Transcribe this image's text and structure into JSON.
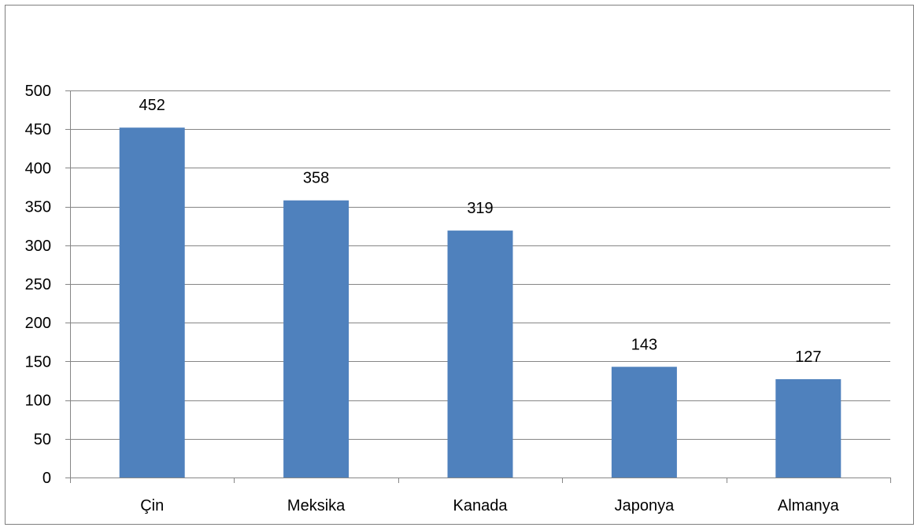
{
  "chart_data": {
    "type": "bar",
    "title": "",
    "xlabel": "",
    "ylabel": "",
    "categories": [
      "Çin",
      "Meksika",
      "Kanada",
      "Japonya",
      "Almanya"
    ],
    "values": [
      452,
      358,
      319,
      143,
      127
    ],
    "data_labels": [
      "452",
      "358",
      "319",
      "143",
      "127"
    ],
    "ylim": [
      0,
      500
    ],
    "yticks": [
      0,
      50,
      100,
      150,
      200,
      250,
      300,
      350,
      400,
      450,
      500
    ],
    "grid": true,
    "legend": "none",
    "bar_color": "#4F81BD",
    "grid_color": "#868686"
  }
}
